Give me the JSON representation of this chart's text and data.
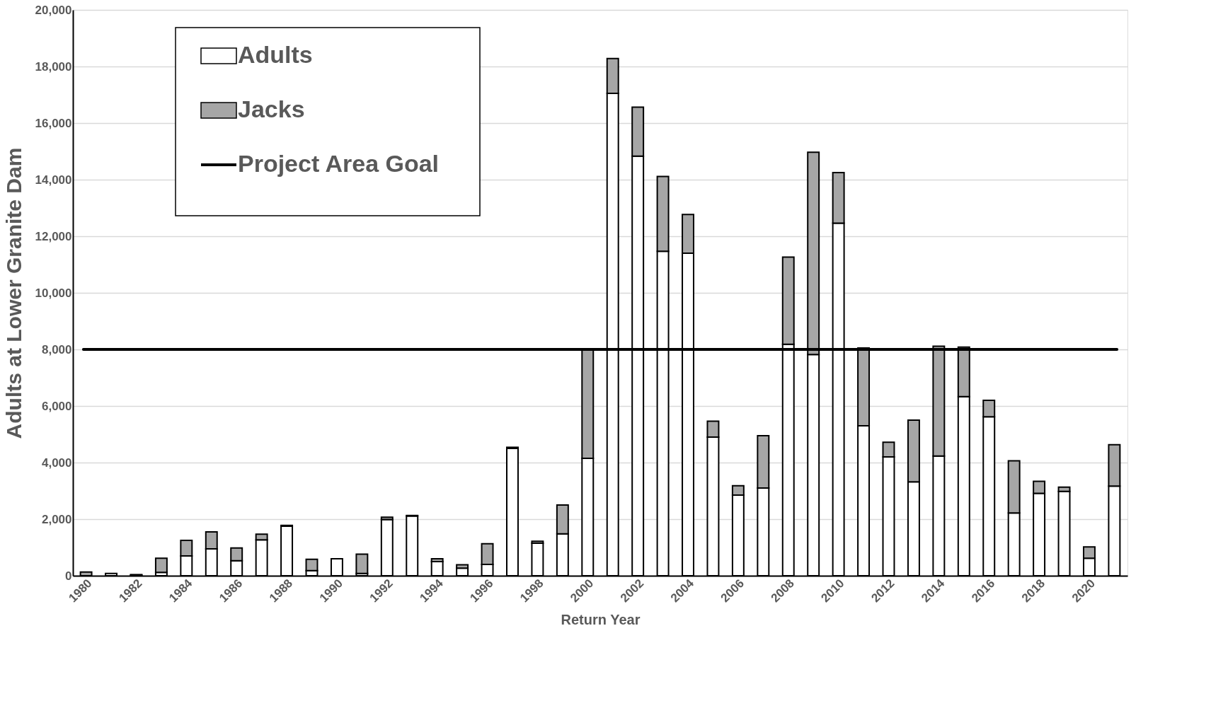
{
  "chart_data": {
    "type": "bar",
    "stacked": true,
    "xlabel": "Return Year",
    "ylabel": "Adults at Lower Granite Dam",
    "categories": [
      "1980",
      null,
      "1982",
      null,
      "1984",
      null,
      "1986",
      null,
      "1988",
      null,
      "1990",
      null,
      "1992",
      null,
      "1994",
      null,
      "1996",
      null,
      "1998",
      null,
      "2000",
      null,
      "2002",
      null,
      "2004",
      null,
      "2006",
      null,
      "2008",
      null,
      "2010",
      null,
      "2012",
      null,
      "2014",
      null,
      "2016",
      null,
      "2018",
      null,
      "2020",
      null
    ],
    "series": [
      {
        "name": "Adults",
        "color": "#ffffff",
        "values": [
          null,
          80,
          20,
          120,
          700,
          950,
          530,
          1270,
          1750,
          180,
          600,
          80,
          1990,
          2110,
          500,
          270,
          400,
          4500,
          1150,
          1480,
          4150,
          17050,
          14830,
          11470,
          11400,
          4900,
          2850,
          3100,
          8180,
          7820,
          12460,
          5300,
          4200,
          3320,
          4230,
          6330,
          5620,
          2220,
          2910,
          2980,
          620,
          3170
        ]
      },
      {
        "name": "Jacks",
        "color": "#a6a6a6",
        "values": [
          130,
          null,
          20,
          500,
          550,
          600,
          450,
          200,
          30,
          400,
          null,
          680,
          80,
          20,
          100,
          120,
          730,
          40,
          70,
          1020,
          3850,
          1230,
          1730,
          2640,
          1370,
          560,
          330,
          1850,
          3080,
          7150,
          1790,
          2750,
          520,
          2180,
          3880,
          1750,
          580,
          1840,
          430,
          150,
          400,
          1460
        ]
      }
    ],
    "ref_lines": [
      {
        "axis": "y",
        "value": 8000,
        "label": "Project Area Goal",
        "color": "#000000"
      }
    ],
    "ylim": [
      0,
      20000
    ],
    "yticks": [
      {
        "value": 0,
        "label": "0"
      },
      {
        "value": 2000,
        "label": "2,000"
      },
      {
        "value": 4000,
        "label": "4,000"
      },
      {
        "value": 6000,
        "label": "6,000"
      },
      {
        "value": 8000,
        "label": "8,000"
      },
      {
        "value": 10000,
        "label": "10,000"
      },
      {
        "value": 12000,
        "label": "12,000"
      },
      {
        "value": 14000,
        "label": "14,000"
      },
      {
        "value": 16000,
        "label": "16,000"
      },
      {
        "value": 18000,
        "label": "18,000"
      },
      {
        "value": 20000,
        "label": "20,000"
      }
    ],
    "grid": "y",
    "legend": "top left"
  }
}
